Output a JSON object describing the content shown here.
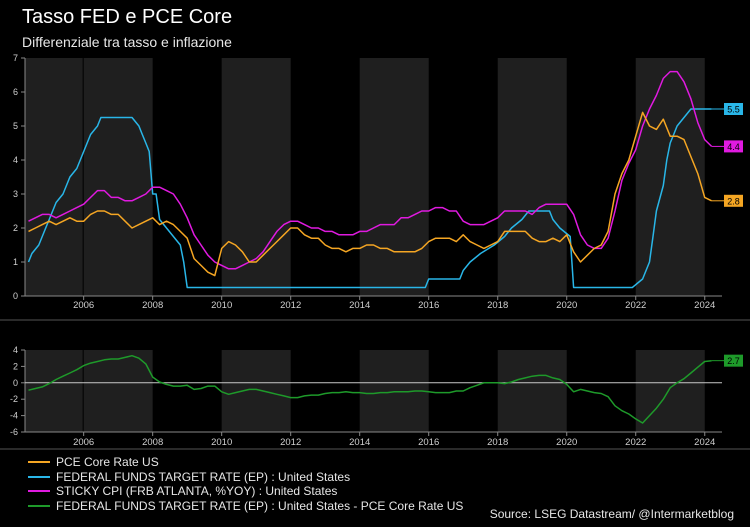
{
  "title": "Tasso FED e PCE Core",
  "subtitle": "Differenziale tra tasso e inflazione",
  "legend": [
    "PCE Core Rate US",
    "FEDERAL FUNDS TARGET RATE (EP) : United States",
    "STICKY CPI (FRB ATLANTA, %YOY) : United States",
    "FEDERAL FUNDS TARGET RATE (EP) : United States - PCE Core Rate US"
  ],
  "source": "Source: LSEG Datastream/ @Intermarketblog",
  "colors": {
    "background": "#000000",
    "pce": "#f5a623",
    "fed": "#29b6e8",
    "sticky": "#e01ae0",
    "diff": "#1e9a2a",
    "band": "#1f1f1f",
    "grid": "#3a3a3a"
  },
  "chart_data": [
    {
      "type": "line",
      "xlim": [
        2004.3,
        2024.5
      ],
      "ylim": [
        0,
        7
      ],
      "x_ticks": [
        2006,
        2008,
        2010,
        2012,
        2014,
        2016,
        2018,
        2020,
        2022,
        2024
      ],
      "y_ticks": [
        0,
        1,
        2,
        3,
        4,
        5,
        6,
        7
      ],
      "end_labels": [
        {
          "series": "FEDERAL FUNDS TARGET RATE (EP) : United States",
          "text": "5.5"
        },
        {
          "series": "STICKY CPI (FRB ATLANTA, %YOY) : United States",
          "text": "4.4"
        },
        {
          "series": "PCE Core Rate US",
          "text": "2.8"
        }
      ],
      "series": [
        {
          "name": "PCE Core Rate US",
          "x": [
            2004.4,
            2004.6,
            2004.8,
            2005.0,
            2005.2,
            2005.4,
            2005.6,
            2005.8,
            2006.0,
            2006.2,
            2006.4,
            2006.6,
            2006.8,
            2007.0,
            2007.2,
            2007.4,
            2007.6,
            2007.8,
            2008.0,
            2008.2,
            2008.4,
            2008.6,
            2008.8,
            2009.0,
            2009.2,
            2009.4,
            2009.6,
            2009.8,
            2010.0,
            2010.2,
            2010.4,
            2010.6,
            2010.8,
            2011.0,
            2011.2,
            2011.4,
            2011.6,
            2011.8,
            2012.0,
            2012.2,
            2012.4,
            2012.6,
            2012.8,
            2013.0,
            2013.2,
            2013.4,
            2013.6,
            2013.8,
            2014.0,
            2014.2,
            2014.4,
            2014.6,
            2014.8,
            2015.0,
            2015.2,
            2015.4,
            2015.6,
            2015.8,
            2016.0,
            2016.2,
            2016.4,
            2016.6,
            2016.8,
            2017.0,
            2017.2,
            2017.4,
            2017.6,
            2017.8,
            2018.0,
            2018.2,
            2018.4,
            2018.6,
            2018.8,
            2019.0,
            2019.2,
            2019.4,
            2019.6,
            2019.8,
            2020.0,
            2020.2,
            2020.4,
            2020.6,
            2020.8,
            2021.0,
            2021.2,
            2021.4,
            2021.6,
            2021.8,
            2022.0,
            2022.2,
            2022.4,
            2022.6,
            2022.8,
            2023.0,
            2023.2,
            2023.4,
            2023.6,
            2023.8,
            2024.0,
            2024.2
          ],
          "values": [
            1.9,
            2.0,
            2.1,
            2.2,
            2.1,
            2.2,
            2.3,
            2.2,
            2.2,
            2.4,
            2.5,
            2.5,
            2.4,
            2.4,
            2.2,
            2.0,
            2.1,
            2.2,
            2.3,
            2.1,
            2.2,
            2.1,
            1.9,
            1.7,
            1.1,
            0.9,
            0.7,
            0.6,
            1.4,
            1.6,
            1.5,
            1.3,
            1.0,
            1.0,
            1.2,
            1.4,
            1.6,
            1.8,
            2.0,
            2.0,
            1.8,
            1.7,
            1.7,
            1.5,
            1.4,
            1.4,
            1.3,
            1.4,
            1.4,
            1.5,
            1.5,
            1.4,
            1.4,
            1.3,
            1.3,
            1.3,
            1.3,
            1.4,
            1.6,
            1.7,
            1.7,
            1.7,
            1.6,
            1.8,
            1.6,
            1.5,
            1.4,
            1.5,
            1.6,
            1.9,
            1.9,
            1.9,
            1.9,
            1.7,
            1.6,
            1.6,
            1.7,
            1.6,
            1.8,
            1.3,
            1.0,
            1.2,
            1.4,
            1.5,
            1.9,
            3.0,
            3.6,
            4.0,
            4.7,
            5.4,
            5.0,
            4.9,
            5.2,
            4.7,
            4.7,
            4.6,
            4.1,
            3.6,
            2.9,
            2.8
          ]
        },
        {
          "name": "FEDERAL FUNDS TARGET RATE (EP) : United States",
          "x": [
            2004.4,
            2004.5,
            2004.7,
            2004.9,
            2005.0,
            2005.2,
            2005.4,
            2005.6,
            2005.8,
            2006.0,
            2006.2,
            2006.4,
            2006.5,
            2006.6,
            2007.4,
            2007.6,
            2007.7,
            2007.8,
            2007.9,
            2008.0,
            2008.1,
            2008.2,
            2008.4,
            2008.8,
            2008.9,
            2009.0,
            2015.9,
            2016.0,
            2016.9,
            2017.0,
            2017.2,
            2017.5,
            2017.9,
            2018.2,
            2018.4,
            2018.7,
            2018.9,
            2019.5,
            2019.6,
            2019.8,
            2020.1,
            2020.2,
            2021.9,
            2022.2,
            2022.4,
            2022.5,
            2022.6,
            2022.8,
            2022.9,
            2023.0,
            2023.1,
            2023.2,
            2023.4,
            2023.6,
            2024.2
          ],
          "values": [
            1.0,
            1.25,
            1.5,
            2.0,
            2.25,
            2.75,
            3.0,
            3.5,
            3.75,
            4.25,
            4.75,
            5.0,
            5.25,
            5.25,
            5.25,
            5.0,
            4.75,
            4.5,
            4.25,
            3.0,
            3.0,
            2.25,
            2.0,
            1.5,
            1.0,
            0.25,
            0.25,
            0.5,
            0.5,
            0.75,
            1.0,
            1.25,
            1.5,
            1.75,
            2.0,
            2.25,
            2.5,
            2.5,
            2.25,
            2.0,
            1.75,
            0.25,
            0.25,
            0.5,
            1.0,
            1.75,
            2.5,
            3.25,
            4.0,
            4.5,
            4.75,
            5.0,
            5.25,
            5.5,
            5.5
          ]
        },
        {
          "name": "STICKY CPI (FRB ATLANTA, %YOY) : United States",
          "x": [
            2004.4,
            2004.6,
            2004.8,
            2005.0,
            2005.2,
            2005.4,
            2005.6,
            2005.8,
            2006.0,
            2006.2,
            2006.4,
            2006.6,
            2006.8,
            2007.0,
            2007.2,
            2007.4,
            2007.6,
            2007.8,
            2008.0,
            2008.2,
            2008.4,
            2008.6,
            2008.8,
            2009.0,
            2009.2,
            2009.4,
            2009.6,
            2009.8,
            2010.0,
            2010.2,
            2010.4,
            2010.6,
            2010.8,
            2011.0,
            2011.2,
            2011.4,
            2011.6,
            2011.8,
            2012.0,
            2012.2,
            2012.4,
            2012.6,
            2012.8,
            2013.0,
            2013.2,
            2013.4,
            2013.6,
            2013.8,
            2014.0,
            2014.2,
            2014.4,
            2014.6,
            2014.8,
            2015.0,
            2015.2,
            2015.4,
            2015.6,
            2015.8,
            2016.0,
            2016.2,
            2016.4,
            2016.6,
            2016.8,
            2017.0,
            2017.2,
            2017.4,
            2017.6,
            2017.8,
            2018.0,
            2018.2,
            2018.4,
            2018.6,
            2018.8,
            2019.0,
            2019.2,
            2019.4,
            2019.6,
            2019.8,
            2020.0,
            2020.2,
            2020.4,
            2020.6,
            2020.8,
            2021.0,
            2021.2,
            2021.4,
            2021.6,
            2021.8,
            2022.0,
            2022.2,
            2022.4,
            2022.6,
            2022.8,
            2023.0,
            2023.2,
            2023.4,
            2023.6,
            2023.8,
            2024.0,
            2024.2
          ],
          "values": [
            2.2,
            2.3,
            2.4,
            2.4,
            2.3,
            2.4,
            2.5,
            2.6,
            2.7,
            2.9,
            3.1,
            3.1,
            2.9,
            2.9,
            2.8,
            2.8,
            2.9,
            3.0,
            3.2,
            3.2,
            3.1,
            3.0,
            2.7,
            2.3,
            1.8,
            1.5,
            1.2,
            1.0,
            0.9,
            0.8,
            0.8,
            0.9,
            1.0,
            1.1,
            1.3,
            1.6,
            1.9,
            2.1,
            2.2,
            2.2,
            2.1,
            2.0,
            2.0,
            1.9,
            1.9,
            1.8,
            1.8,
            1.8,
            1.9,
            1.9,
            2.0,
            2.1,
            2.1,
            2.1,
            2.3,
            2.3,
            2.4,
            2.5,
            2.5,
            2.6,
            2.6,
            2.5,
            2.5,
            2.2,
            2.1,
            2.1,
            2.1,
            2.2,
            2.3,
            2.5,
            2.5,
            2.5,
            2.5,
            2.4,
            2.6,
            2.7,
            2.7,
            2.7,
            2.7,
            2.4,
            1.8,
            1.5,
            1.4,
            1.4,
            1.7,
            2.5,
            3.4,
            3.9,
            4.3,
            5.0,
            5.5,
            5.9,
            6.4,
            6.6,
            6.6,
            6.3,
            5.8,
            5.1,
            4.6,
            4.4
          ]
        }
      ]
    },
    {
      "type": "line",
      "xlim": [
        2004.3,
        2024.5
      ],
      "ylim": [
        -6,
        4
      ],
      "x_ticks": [
        2006,
        2008,
        2010,
        2012,
        2014,
        2016,
        2018,
        2020,
        2022,
        2024
      ],
      "y_ticks": [
        -6,
        -4,
        -2,
        0,
        2,
        4
      ],
      "end_labels": [
        {
          "series": "FEDERAL FUNDS TARGET RATE (EP) : United States - PCE Core Rate US",
          "text": "2.7"
        }
      ],
      "series": [
        {
          "name": "FEDERAL FUNDS TARGET RATE (EP) : United States - PCE Core Rate US",
          "x": [
            2004.4,
            2004.6,
            2004.8,
            2005.0,
            2005.2,
            2005.4,
            2005.6,
            2005.8,
            2006.0,
            2006.2,
            2006.4,
            2006.6,
            2006.8,
            2007.0,
            2007.2,
            2007.4,
            2007.6,
            2007.8,
            2008.0,
            2008.2,
            2008.4,
            2008.6,
            2008.8,
            2009.0,
            2009.2,
            2009.4,
            2009.6,
            2009.8,
            2010.0,
            2010.2,
            2010.4,
            2010.6,
            2010.8,
            2011.0,
            2011.2,
            2011.4,
            2011.6,
            2011.8,
            2012.0,
            2012.2,
            2012.4,
            2012.6,
            2012.8,
            2013.0,
            2013.2,
            2013.4,
            2013.6,
            2013.8,
            2014.0,
            2014.2,
            2014.4,
            2014.6,
            2014.8,
            2015.0,
            2015.2,
            2015.4,
            2015.6,
            2015.8,
            2016.0,
            2016.2,
            2016.4,
            2016.6,
            2016.8,
            2017.0,
            2017.2,
            2017.4,
            2017.6,
            2017.8,
            2018.0,
            2018.2,
            2018.4,
            2018.6,
            2018.8,
            2019.0,
            2019.2,
            2019.4,
            2019.6,
            2019.8,
            2020.0,
            2020.2,
            2020.4,
            2020.6,
            2020.8,
            2021.0,
            2021.2,
            2021.4,
            2021.6,
            2021.8,
            2022.0,
            2022.2,
            2022.4,
            2022.6,
            2022.8,
            2023.0,
            2023.2,
            2023.4,
            2023.6,
            2023.8,
            2024.0,
            2024.2
          ],
          "values": [
            -0.9,
            -0.7,
            -0.5,
            -0.1,
            0.4,
            0.8,
            1.2,
            1.6,
            2.1,
            2.4,
            2.6,
            2.8,
            2.9,
            2.9,
            3.1,
            3.3,
            3.0,
            2.3,
            0.7,
            0.1,
            -0.2,
            -0.4,
            -0.4,
            -0.3,
            -0.8,
            -0.7,
            -0.4,
            -0.4,
            -1.1,
            -1.4,
            -1.2,
            -1.0,
            -0.8,
            -0.8,
            -1.0,
            -1.2,
            -1.4,
            -1.6,
            -1.8,
            -1.8,
            -1.6,
            -1.5,
            -1.5,
            -1.3,
            -1.2,
            -1.2,
            -1.1,
            -1.2,
            -1.2,
            -1.3,
            -1.3,
            -1.2,
            -1.2,
            -1.1,
            -1.1,
            -1.1,
            -1.0,
            -1.0,
            -1.1,
            -1.2,
            -1.2,
            -1.2,
            -1.0,
            -1.0,
            -0.6,
            -0.3,
            0.0,
            0.0,
            0.0,
            -0.1,
            0.1,
            0.4,
            0.6,
            0.8,
            0.9,
            0.9,
            0.6,
            0.4,
            -0.2,
            -1.1,
            -0.8,
            -1.0,
            -1.2,
            -1.3,
            -1.7,
            -2.8,
            -3.4,
            -3.8,
            -4.4,
            -4.9,
            -4.0,
            -3.1,
            -2.0,
            -0.6,
            0.0,
            0.5,
            1.2,
            1.9,
            2.6,
            2.7
          ]
        }
      ]
    }
  ]
}
